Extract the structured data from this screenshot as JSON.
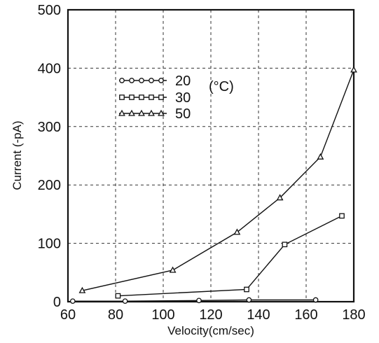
{
  "chart_data": {
    "type": "line",
    "xlabel": "Velocity(cm/sec)",
    "ylabel": "Current (-pA)",
    "xlim": [
      60,
      180
    ],
    "ylim": [
      0,
      500
    ],
    "x_ticks": [
      "60",
      "80",
      "100",
      "120",
      "140",
      "160",
      "180"
    ],
    "y_ticks": [
      "0",
      "100",
      "200",
      "300",
      "400",
      "500"
    ],
    "grid": true,
    "legend_position": "upper-left",
    "legend_unit": "(°C)",
    "series": [
      {
        "name": "20",
        "marker": "circle",
        "x": [
          62,
          84,
          115,
          136,
          164
        ],
        "y": [
          1,
          1,
          2,
          3,
          3
        ]
      },
      {
        "name": "30",
        "marker": "square",
        "x": [
          81,
          135,
          151,
          175
        ],
        "y": [
          10,
          21,
          98,
          147
        ]
      },
      {
        "name": "50",
        "marker": "triangle",
        "x": [
          66,
          104,
          131,
          149,
          166,
          180
        ],
        "y": [
          19,
          54,
          119,
          178,
          248,
          397
        ]
      }
    ]
  }
}
